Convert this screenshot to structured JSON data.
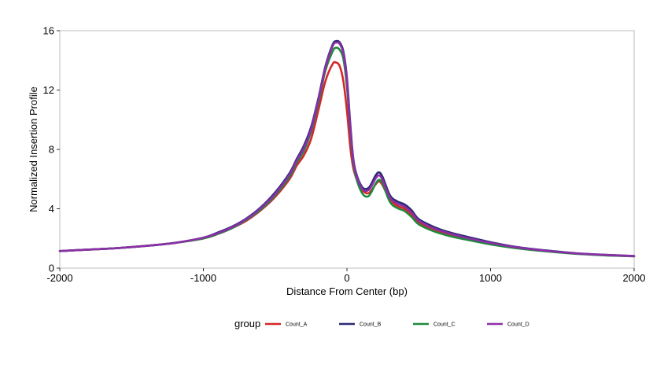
{
  "chart_data": {
    "type": "line",
    "title": "",
    "xlabel": "Distance From Center (bp)",
    "ylabel": "Normalized Insertion Profile",
    "xlim": [
      -2000,
      2000
    ],
    "ylim": [
      0,
      16
    ],
    "x_ticks": [
      -2000,
      -1000,
      0,
      1000,
      2000
    ],
    "x_tick_labels": [
      "-2000",
      "-1000",
      "0",
      "1000",
      "2000"
    ],
    "y_ticks": [
      0,
      4,
      8,
      12,
      16
    ],
    "y_tick_labels": [
      "0",
      "4",
      "8",
      "12",
      "16"
    ],
    "grid": false,
    "legend": {
      "title": "group",
      "placement": "bottom"
    },
    "x": [
      -2000,
      -1800,
      -1600,
      -1400,
      -1200,
      -1000,
      -900,
      -800,
      -700,
      -600,
      -500,
      -400,
      -350,
      -300,
      -250,
      -200,
      -150,
      -100,
      -75,
      -50,
      -25,
      0,
      25,
      50,
      100,
      150,
      200,
      225,
      250,
      300,
      350,
      400,
      450,
      500,
      600,
      700,
      800,
      1000,
      1200,
      1400,
      1600,
      1800,
      2000
    ],
    "series": [
      {
        "name": "Count_A",
        "color": "#d62728",
        "values": [
          1.15,
          1.25,
          1.35,
          1.5,
          1.7,
          2.0,
          2.3,
          2.7,
          3.2,
          3.9,
          4.8,
          6.0,
          6.9,
          7.6,
          8.7,
          10.6,
          12.6,
          13.75,
          13.85,
          13.6,
          12.6,
          10.6,
          8.0,
          6.5,
          5.35,
          5.05,
          5.65,
          5.85,
          5.55,
          4.6,
          4.2,
          4.0,
          3.6,
          3.1,
          2.6,
          2.3,
          2.05,
          1.65,
          1.35,
          1.15,
          0.98,
          0.88,
          0.8
        ]
      },
      {
        "name": "Count_B",
        "color": "#2a2a72",
        "values": [
          1.15,
          1.25,
          1.35,
          1.5,
          1.7,
          2.05,
          2.4,
          2.8,
          3.35,
          4.1,
          5.1,
          6.4,
          7.35,
          8.25,
          9.5,
          11.4,
          13.6,
          15.05,
          15.3,
          15.2,
          14.6,
          12.8,
          9.5,
          7.0,
          5.55,
          5.4,
          6.25,
          6.45,
          6.1,
          4.9,
          4.5,
          4.3,
          3.9,
          3.3,
          2.8,
          2.45,
          2.2,
          1.75,
          1.4,
          1.18,
          1.0,
          0.9,
          0.82
        ]
      },
      {
        "name": "Count_C",
        "color": "#1f8a3c",
        "values": [
          1.15,
          1.25,
          1.35,
          1.5,
          1.7,
          2.0,
          2.3,
          2.7,
          3.25,
          3.95,
          4.9,
          6.15,
          7.1,
          7.9,
          9.2,
          11.1,
          13.3,
          14.6,
          14.85,
          14.7,
          14.1,
          12.2,
          9.0,
          6.7,
          5.15,
          4.85,
          5.7,
          5.95,
          5.65,
          4.45,
          4.05,
          3.85,
          3.45,
          2.95,
          2.5,
          2.2,
          1.98,
          1.6,
          1.32,
          1.12,
          0.96,
          0.86,
          0.8
        ]
      },
      {
        "name": "Count_D",
        "color": "#8b2fa8",
        "values": [
          1.15,
          1.25,
          1.35,
          1.5,
          1.7,
          2.05,
          2.35,
          2.75,
          3.3,
          4.05,
          5.0,
          6.3,
          7.25,
          8.1,
          9.35,
          11.3,
          13.5,
          14.95,
          15.2,
          15.1,
          14.45,
          12.6,
          9.3,
          6.9,
          5.45,
          5.25,
          6.05,
          6.25,
          5.9,
          4.75,
          4.35,
          4.15,
          3.75,
          3.2,
          2.7,
          2.38,
          2.12,
          1.7,
          1.38,
          1.16,
          0.99,
          0.89,
          0.81
        ]
      }
    ]
  }
}
